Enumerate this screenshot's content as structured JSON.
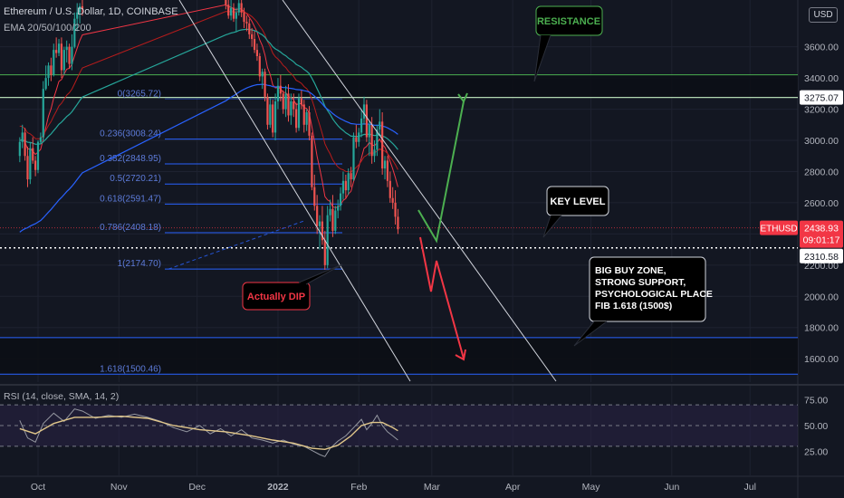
{
  "header": {
    "symbol_line": "Ethereum / U.S. Dollar, 1D, COINBASE",
    "indicator_line": "EMA 20/50/100/200"
  },
  "currency_badge": "USD",
  "colors": {
    "background": "#131722",
    "grid": "#1e2230",
    "candle_up": "#26a69a",
    "candle_down": "#ef5350",
    "ema20": "#f23645",
    "ema50": "#b71c1c",
    "ema100": "#26a69a",
    "ema200": "#2962ff",
    "fib_line": "#2962ff",
    "resistance_line": "#4caf50",
    "rsi_line": "#b2b5be",
    "rsi_band": "#2a2346",
    "green_path": "#4caf50",
    "red_path": "#f23645",
    "trendline": "#d1d4dc"
  },
  "chart_data": {
    "type": "candlestick",
    "symbol": "ETHUSD",
    "y_axis": {
      "min": 1450,
      "max": 3900,
      "ticks": [
        1600,
        1800,
        2000,
        2200,
        2400,
        2600,
        2800,
        3000,
        3200,
        3400,
        3600
      ],
      "tick_labels": [
        "1600.00",
        "1800.00",
        "2000.00",
        "2200.00",
        "2400.00",
        "2600.00",
        "2800.00",
        "3000.00",
        "3200.00",
        "3400.00",
        "3600.00"
      ]
    },
    "x_axis": {
      "labels": [
        "Oct",
        "Nov",
        "Dec",
        "2022",
        "Feb",
        "Mar",
        "Apr",
        "May",
        "Jun",
        "Jul"
      ],
      "label_days": [
        0,
        31,
        61,
        92,
        123,
        151,
        182,
        212,
        243,
        273
      ]
    },
    "price_labels": [
      {
        "text": "3275.07",
        "value": 3275.07,
        "style": "white"
      },
      {
        "text": "ETHUSD",
        "value": 2438.93,
        "style": "red"
      },
      {
        "text": "2438.93",
        "value": 2438.93,
        "style": "red"
      },
      {
        "text": "09:01:17",
        "value": 2438.93,
        "style": "red-sub"
      },
      {
        "text": "2310.58",
        "value": 2310.58,
        "style": "white"
      }
    ],
    "candles": [
      [
        -7,
        2900,
        3020,
        2860,
        2990
      ],
      [
        -6,
        2990,
        3100,
        2950,
        3050
      ],
      [
        -5,
        3050,
        3080,
        2870,
        2900
      ],
      [
        -4,
        2900,
        2960,
        2700,
        2750
      ],
      [
        -3,
        2750,
        2990,
        2720,
        2950
      ],
      [
        -2,
        2950,
        3020,
        2850,
        2870
      ],
      [
        -1,
        2870,
        2900,
        2770,
        2810
      ],
      [
        0,
        2810,
        3000,
        2790,
        2990
      ],
      [
        1,
        2990,
        3050,
        2980,
        3020
      ],
      [
        2,
        3020,
        3380,
        3000,
        3330
      ],
      [
        3,
        3330,
        3480,
        3320,
        3400
      ],
      [
        4,
        3400,
        3500,
        3350,
        3480
      ],
      [
        5,
        3480,
        3530,
        3380,
        3420
      ],
      [
        6,
        3420,
        3620,
        3410,
        3580
      ],
      [
        7,
        3580,
        3660,
        3530,
        3560
      ],
      [
        8,
        3560,
        3650,
        3540,
        3620
      ],
      [
        9,
        3620,
        3660,
        3400,
        3450
      ],
      [
        10,
        3450,
        3600,
        3420,
        3580
      ],
      [
        11,
        3580,
        3640,
        3500,
        3600
      ],
      [
        12,
        3600,
        3620,
        3460,
        3490
      ],
      [
        13,
        3490,
        3680,
        3450,
        3600
      ],
      [
        14,
        3600,
        3820,
        3590,
        3780
      ],
      [
        15,
        3780,
        3880,
        3700,
        3820
      ],
      [
        16,
        3820,
        3880,
        3750,
        3860
      ],
      [
        17,
        3860,
        3900,
        3800,
        3840
      ],
      [
        72,
        3900,
        3950,
        3840,
        3870
      ],
      [
        73,
        3870,
        3950,
        3780,
        3800
      ],
      [
        74,
        3800,
        3900,
        3770,
        3850
      ],
      [
        75,
        3850,
        3880,
        3760,
        3780
      ],
      [
        76,
        3780,
        3850,
        3700,
        3820
      ],
      [
        77,
        3820,
        3900,
        3800,
        3880
      ],
      [
        78,
        3880,
        3900,
        3790,
        3820
      ],
      [
        79,
        3820,
        3850,
        3720,
        3760
      ],
      [
        80,
        3760,
        3800,
        3700,
        3750
      ],
      [
        81,
        3750,
        3780,
        3650,
        3680
      ],
      [
        82,
        3680,
        3720,
        3600,
        3650
      ],
      [
        83,
        3650,
        3700,
        3560,
        3580
      ],
      [
        84,
        3580,
        3620,
        3510,
        3540
      ],
      [
        85,
        3540,
        3560,
        3380,
        3410
      ],
      [
        86,
        3410,
        3460,
        3330,
        3440
      ],
      [
        87,
        3440,
        3460,
        3250,
        3280
      ],
      [
        88,
        3280,
        3300,
        3070,
        3100
      ],
      [
        89,
        3100,
        3270,
        3080,
        3230
      ],
      [
        90,
        3230,
        3260,
        3020,
        3050
      ],
      [
        91,
        3050,
        3300,
        3000,
        3250
      ],
      [
        92,
        3250,
        3400,
        3200,
        3350
      ],
      [
        93,
        3350,
        3420,
        3250,
        3300
      ],
      [
        94,
        3300,
        3320,
        3170,
        3200
      ],
      [
        95,
        3200,
        3350,
        3150,
        3300
      ],
      [
        96,
        3300,
        3360,
        3120,
        3160
      ],
      [
        97,
        3160,
        3300,
        3100,
        3250
      ],
      [
        98,
        3250,
        3300,
        3150,
        3200
      ],
      [
        99,
        3200,
        3240,
        3050,
        3080
      ],
      [
        100,
        3080,
        3300,
        3060,
        3270
      ],
      [
        101,
        3270,
        3320,
        3200,
        3230
      ],
      [
        102,
        3230,
        3260,
        3050,
        3100
      ],
      [
        103,
        3100,
        3200,
        3060,
        3180
      ],
      [
        104,
        3180,
        3220,
        3000,
        3030
      ],
      [
        105,
        3030,
        3050,
        2680,
        2700
      ],
      [
        106,
        2700,
        2780,
        2550,
        2580
      ],
      [
        107,
        2580,
        2650,
        2400,
        2450
      ],
      [
        108,
        2450,
        2520,
        2300,
        2480
      ],
      [
        109,
        2480,
        2580,
        2330,
        2360
      ],
      [
        110,
        2360,
        2420,
        2170,
        2200
      ],
      [
        111,
        2200,
        2580,
        2180,
        2520
      ],
      [
        112,
        2520,
        2620,
        2480,
        2560
      ],
      [
        113,
        2560,
        2650,
        2380,
        2420
      ],
      [
        114,
        2420,
        2580,
        2400,
        2550
      ],
      [
        115,
        2550,
        2620,
        2500,
        2580
      ],
      [
        116,
        2580,
        2700,
        2550,
        2660
      ],
      [
        117,
        2660,
        2800,
        2620,
        2740
      ],
      [
        118,
        2740,
        2780,
        2630,
        2680
      ],
      [
        119,
        2680,
        2820,
        2650,
        2790
      ],
      [
        120,
        2790,
        2830,
        2700,
        2750
      ],
      [
        121,
        2750,
        3050,
        2740,
        3020
      ],
      [
        122,
        3020,
        3100,
        2950,
        2990
      ],
      [
        123,
        2990,
        3080,
        2960,
        3050
      ],
      [
        124,
        3050,
        3200,
        3020,
        3140
      ],
      [
        125,
        3140,
        3280,
        3100,
        3230
      ],
      [
        126,
        3230,
        3260,
        2990,
        3020
      ],
      [
        127,
        3020,
        3120,
        2900,
        3100
      ],
      [
        128,
        3100,
        3150,
        2850,
        2900
      ],
      [
        129,
        2900,
        3000,
        2860,
        2940
      ],
      [
        130,
        2940,
        3100,
        2900,
        3070
      ],
      [
        131,
        3070,
        3200,
        3030,
        3120
      ],
      [
        132,
        3120,
        3180,
        2780,
        2820
      ],
      [
        133,
        2820,
        2900,
        2750,
        2870
      ],
      [
        134,
        2870,
        2900,
        2700,
        2740
      ],
      [
        135,
        2740,
        2800,
        2600,
        2630
      ],
      [
        136,
        2630,
        2700,
        2560,
        2600
      ],
      [
        137,
        2600,
        2680,
        2460,
        2510
      ],
      [
        138,
        2510,
        2560,
        2400,
        2430
      ]
    ],
    "fib_levels": [
      {
        "label": "0(3265.72)",
        "value": 3265.72
      },
      {
        "label": "0.236(3008.24)",
        "value": 3008.24
      },
      {
        "label": "0.382(2848.95)",
        "value": 2848.95
      },
      {
        "label": "0.5(2720.21)",
        "value": 2720.21
      },
      {
        "label": "0.618(2591.47)",
        "value": 2591.47
      },
      {
        "label": "0.786(2408.18)",
        "value": 2408.18
      },
      {
        "label": "1(2174.70)",
        "value": 2174.7
      },
      {
        "label": "1.618(1500.46)",
        "value": 1500.46
      }
    ],
    "horizontal_lines": [
      {
        "name": "resistance",
        "value": 3420
      },
      {
        "name": "upper-level",
        "value": 3275.07
      },
      {
        "name": "key-level",
        "value": 2310.58
      },
      {
        "name": "buy-zone-top",
        "value": 1735
      },
      {
        "name": "buy-zone-bottom",
        "value": 1500.46
      }
    ],
    "callouts": [
      {
        "text": "RESISTANCE",
        "color": "#4caf50"
      },
      {
        "text": "KEY LEVEL",
        "color": "#ffffff"
      },
      {
        "text": "Actually DIP",
        "color": "#f23645"
      },
      {
        "text": "BIG BUY ZONE,",
        "color": "#ffffff"
      },
      {
        "text": "STRONG SUPPORT,",
        "color": "#ffffff"
      },
      {
        "text": "PSYCHOLOGICAL PLACE",
        "color": "#ffffff"
      },
      {
        "text": "FIB 1.618 (1500$)",
        "color": "#ffffff"
      }
    ],
    "rsi": {
      "title": "RSI (14, close, SMA, 14, 2)",
      "min": 15,
      "max": 85,
      "ticks": [
        25,
        50,
        75
      ],
      "tick_labels": [
        "25.00",
        "50.00",
        "75.00"
      ],
      "band": [
        30,
        70
      ],
      "values": [
        [
          -7,
          55
        ],
        [
          -4,
          38
        ],
        [
          -1,
          34
        ],
        [
          2,
          52
        ],
        [
          6,
          62
        ],
        [
          10,
          54
        ],
        [
          14,
          66
        ],
        [
          17,
          64
        ],
        [
          22,
          57
        ],
        [
          27,
          60
        ],
        [
          32,
          58
        ],
        [
          37,
          61
        ],
        [
          42,
          58
        ],
        [
          47,
          54
        ],
        [
          52,
          48
        ],
        [
          57,
          44
        ],
        [
          62,
          50
        ],
        [
          66,
          42
        ],
        [
          70,
          47
        ],
        [
          74,
          40
        ],
        [
          78,
          46
        ],
        [
          82,
          38
        ],
        [
          86,
          36
        ],
        [
          90,
          33
        ],
        [
          94,
          36
        ],
        [
          98,
          32
        ],
        [
          102,
          30
        ],
        [
          105,
          26
        ],
        [
          108,
          22
        ],
        [
          110,
          20
        ],
        [
          112,
          28
        ],
        [
          115,
          35
        ],
        [
          118,
          40
        ],
        [
          121,
          48
        ],
        [
          124,
          56
        ],
        [
          126,
          46
        ],
        [
          128,
          52
        ],
        [
          130,
          60
        ],
        [
          132,
          50
        ],
        [
          134,
          44
        ],
        [
          136,
          40
        ],
        [
          138,
          36
        ]
      ],
      "sma": [
        [
          -7,
          47
        ],
        [
          -1,
          42
        ],
        [
          6,
          52
        ],
        [
          14,
          58
        ],
        [
          22,
          58
        ],
        [
          32,
          59
        ],
        [
          42,
          57
        ],
        [
          52,
          50
        ],
        [
          62,
          46
        ],
        [
          72,
          44
        ],
        [
          82,
          40
        ],
        [
          90,
          36
        ],
        [
          98,
          33
        ],
        [
          105,
          28
        ],
        [
          110,
          27
        ],
        [
          115,
          31
        ],
        [
          120,
          40
        ],
        [
          124,
          50
        ],
        [
          128,
          53
        ],
        [
          132,
          53
        ],
        [
          136,
          48
        ],
        [
          138,
          45
        ]
      ]
    }
  }
}
